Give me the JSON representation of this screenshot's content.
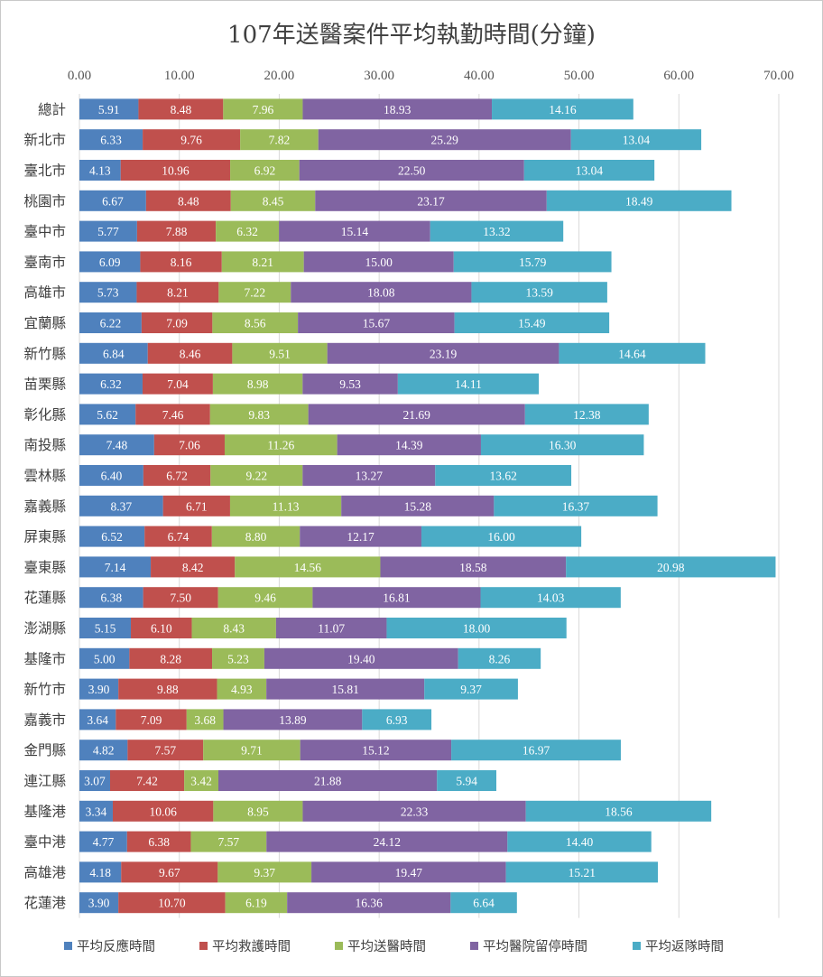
{
  "chart_data": {
    "type": "bar",
    "orientation": "horizontal",
    "stacked": true,
    "title": "107年送醫案件平均執勤時間(分鐘)",
    "xlim": [
      0,
      70
    ],
    "xticks": [
      "0.00",
      "10.00",
      "20.00",
      "30.00",
      "40.00",
      "50.00",
      "60.00",
      "70.00"
    ],
    "grid": true,
    "legend_position": "bottom",
    "categories": [
      "總計",
      "新北市",
      "臺北市",
      "桃園市",
      "臺中市",
      "臺南市",
      "高雄市",
      "宜蘭縣",
      "新竹縣",
      "苗栗縣",
      "彰化縣",
      "南投縣",
      "雲林縣",
      "嘉義縣",
      "屏東縣",
      "臺東縣",
      "花蓮縣",
      "澎湖縣",
      "基隆市",
      "新竹市",
      "嘉義市",
      "金門縣",
      "連江縣",
      "基隆港",
      "臺中港",
      "高雄港",
      "花蓮港"
    ],
    "series": [
      {
        "name": "平均反應時間",
        "color": "#4f81bd",
        "values": [
          "5.91",
          "6.33",
          "4.13",
          "6.67",
          "5.77",
          "6.09",
          "5.73",
          "6.22",
          "6.84",
          "6.32",
          "5.62",
          "7.48",
          "6.40",
          "8.37",
          "6.52",
          "7.14",
          "6.38",
          "5.15",
          "5.00",
          "3.90",
          "3.64",
          "4.82",
          "3.07",
          "3.34",
          "4.77",
          "4.18",
          "3.90"
        ]
      },
      {
        "name": "平均救護時間",
        "color": "#c0504d",
        "values": [
          "8.48",
          "9.76",
          "10.96",
          "8.48",
          "7.88",
          "8.16",
          "8.21",
          "7.09",
          "8.46",
          "7.04",
          "7.46",
          "7.06",
          "6.72",
          "6.71",
          "6.74",
          "8.42",
          "7.50",
          "6.10",
          "8.28",
          "9.88",
          "7.09",
          "7.57",
          "7.42",
          "10.06",
          "6.38",
          "9.67",
          "10.70"
        ]
      },
      {
        "name": "平均送醫時間",
        "color": "#9bbb59",
        "values": [
          "7.96",
          "7.82",
          "6.92",
          "8.45",
          "6.32",
          "8.21",
          "7.22",
          "8.56",
          "9.51",
          "8.98",
          "9.83",
          "11.26",
          "9.22",
          "11.13",
          "8.80",
          "14.56",
          "9.46",
          "8.43",
          "5.23",
          "4.93",
          "3.68",
          "9.71",
          "3.42",
          "8.95",
          "7.57",
          "9.37",
          "6.19"
        ]
      },
      {
        "name": "平均醫院留停時間",
        "color": "#8064a2",
        "values": [
          "18.93",
          "25.29",
          "22.50",
          "23.17",
          "15.14",
          "15.00",
          "18.08",
          "15.67",
          "23.19",
          "9.53",
          "21.69",
          "14.39",
          "13.27",
          "15.28",
          "12.17",
          "18.58",
          "16.81",
          "11.07",
          "19.40",
          "15.81",
          "13.89",
          "15.12",
          "21.88",
          "22.33",
          "24.12",
          "19.47",
          "16.36"
        ]
      },
      {
        "name": "平均返隊時間",
        "color": "#4bacc6",
        "values": [
          "14.16",
          "13.04",
          "13.04",
          "18.49",
          "13.32",
          "15.79",
          "13.59",
          "15.49",
          "14.64",
          "14.11",
          "12.38",
          "16.30",
          "13.62",
          "16.37",
          "16.00",
          "20.98",
          "14.03",
          "18.00",
          "8.26",
          "9.37",
          "6.93",
          "16.97",
          "5.94",
          "18.56",
          "14.40",
          "15.21",
          "6.64"
        ]
      }
    ]
  }
}
